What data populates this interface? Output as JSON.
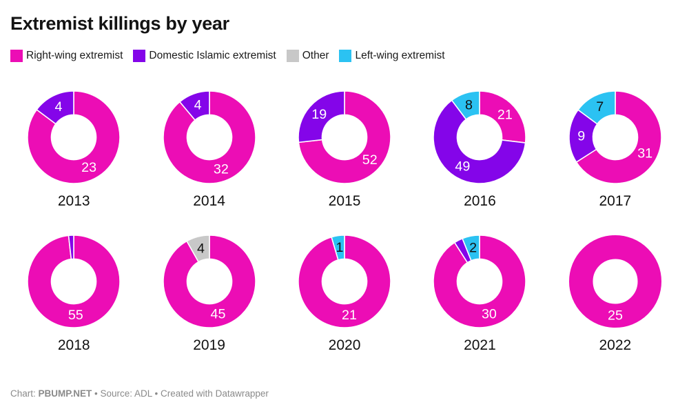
{
  "header": {
    "title": "Extremist killings by year"
  },
  "legend": {
    "items": [
      {
        "label": "Right-wing extremist",
        "color": "#ec0db5"
      },
      {
        "label": "Domestic Islamic extremist",
        "color": "#8405e9"
      },
      {
        "label": "Other",
        "color": "#c8c8c8"
      },
      {
        "label": "Left-wing extremist",
        "color": "#2bc2f2"
      }
    ]
  },
  "chart_data": {
    "type": "pie",
    "variant": "donut_small_multiples",
    "title": "Extremist killings by year",
    "legend_position": "top",
    "categories": [
      {
        "name": "Right-wing extremist",
        "color": "#ec0db5",
        "label_color": "#ffffff"
      },
      {
        "name": "Domestic Islamic extremist",
        "color": "#8405e9",
        "label_color": "#ffffff"
      },
      {
        "name": "Other",
        "color": "#c8c8c8",
        "label_color": "#111111"
      },
      {
        "name": "Left-wing extremist",
        "color": "#2bc2f2",
        "label_color": "#111111"
      }
    ],
    "years": [
      {
        "year": "2013",
        "slices": [
          {
            "category": 0,
            "value": 23
          },
          {
            "category": 1,
            "value": 4
          }
        ]
      },
      {
        "year": "2014",
        "slices": [
          {
            "category": 0,
            "value": 32
          },
          {
            "category": 1,
            "value": 4
          }
        ]
      },
      {
        "year": "2015",
        "slices": [
          {
            "category": 0,
            "value": 52
          },
          {
            "category": 1,
            "value": 19
          }
        ]
      },
      {
        "year": "2016",
        "slices": [
          {
            "category": 0,
            "value": 21
          },
          {
            "category": 1,
            "value": 49
          },
          {
            "category": 3,
            "value": 8
          }
        ]
      },
      {
        "year": "2017",
        "slices": [
          {
            "category": 0,
            "value": 31
          },
          {
            "category": 1,
            "value": 9
          },
          {
            "category": 3,
            "value": 7
          }
        ]
      },
      {
        "year": "2018",
        "slices": [
          {
            "category": 0,
            "value": 55
          },
          {
            "category": 1,
            "value": 1
          }
        ]
      },
      {
        "year": "2019",
        "slices": [
          {
            "category": 0,
            "value": 45
          },
          {
            "category": 2,
            "value": 4
          }
        ]
      },
      {
        "year": "2020",
        "slices": [
          {
            "category": 0,
            "value": 21
          },
          {
            "category": 3,
            "value": 1
          }
        ]
      },
      {
        "year": "2021",
        "slices": [
          {
            "category": 0,
            "value": 30
          },
          {
            "category": 1,
            "value": 1
          },
          {
            "category": 3,
            "value": 2
          }
        ]
      },
      {
        "year": "2022",
        "slices": [
          {
            "category": 0,
            "value": 25
          }
        ]
      }
    ],
    "layout_hints": {
      "start_angle_deg": 0,
      "direction": "clockwise",
      "outer_radius": 68,
      "inner_radius": 33,
      "label_radius": 50,
      "min_label_angle_deg": 14,
      "columns": 5
    }
  },
  "footer": {
    "prefix": "Chart: ",
    "author": "PBUMP.NET",
    "rest": " • Source: ADL • Created with Datawrapper"
  }
}
